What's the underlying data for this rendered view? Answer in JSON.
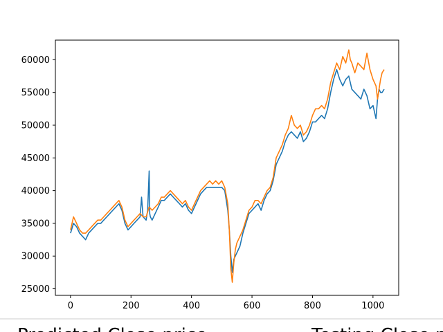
{
  "chart_data": {
    "type": "line",
    "title": "",
    "xlabel": "",
    "ylabel": "",
    "xlim": [
      -50,
      1085
    ],
    "ylim": [
      24000,
      63000
    ],
    "grid": false,
    "legend_position": "bottom",
    "x_ticks": [
      {
        "value": 0,
        "label": "0"
      },
      {
        "value": 200,
        "label": "200"
      },
      {
        "value": 400,
        "label": "400"
      },
      {
        "value": 600,
        "label": "600"
      },
      {
        "value": 800,
        "label": "800"
      },
      {
        "value": 1000,
        "label": "1000"
      }
    ],
    "y_ticks": [
      {
        "value": 25000,
        "label": "25000"
      },
      {
        "value": 30000,
        "label": "30000"
      },
      {
        "value": 35000,
        "label": "35000"
      },
      {
        "value": 40000,
        "label": "40000"
      },
      {
        "value": 45000,
        "label": "45000"
      },
      {
        "value": 50000,
        "label": "50000"
      },
      {
        "value": 55000,
        "label": "55000"
      },
      {
        "value": 60000,
        "label": "60000"
      }
    ],
    "series": [
      {
        "name": "Predicted Close price",
        "color": "#1f77b4",
        "x": [
          0,
          10,
          20,
          30,
          40,
          50,
          60,
          70,
          80,
          90,
          100,
          110,
          120,
          130,
          140,
          150,
          160,
          170,
          180,
          190,
          200,
          210,
          220,
          230,
          235,
          240,
          250,
          255,
          260,
          262,
          264,
          270,
          280,
          290,
          300,
          310,
          320,
          330,
          340,
          350,
          360,
          370,
          380,
          390,
          400,
          410,
          420,
          430,
          440,
          450,
          460,
          470,
          480,
          490,
          500,
          510,
          520,
          525,
          530,
          535,
          540,
          545,
          550,
          560,
          570,
          580,
          590,
          600,
          610,
          620,
          630,
          640,
          650,
          660,
          670,
          680,
          690,
          700,
          710,
          720,
          730,
          740,
          750,
          760,
          770,
          780,
          790,
          800,
          810,
          820,
          830,
          840,
          850,
          860,
          870,
          880,
          890,
          900,
          910,
          920,
          930,
          940,
          950,
          960,
          970,
          980,
          990,
          1000,
          1010,
          1015,
          1020,
          1025,
          1030,
          1037
        ],
        "y": [
          33500,
          35000,
          34500,
          33500,
          33000,
          32500,
          33500,
          34000,
          34500,
          35000,
          35000,
          35500,
          36000,
          36500,
          37000,
          37500,
          38000,
          37000,
          35000,
          34000,
          34500,
          35000,
          35500,
          36000,
          39000,
          36000,
          35500,
          37000,
          43000,
          36500,
          36000,
          35500,
          36500,
          37500,
          38500,
          38500,
          39000,
          39500,
          39000,
          38500,
          38000,
          37500,
          38000,
          37000,
          36500,
          37500,
          38500,
          39500,
          40000,
          40500,
          40500,
          40500,
          40500,
          40500,
          40500,
          40000,
          37000,
          34000,
          30000,
          27500,
          29500,
          30000,
          30500,
          31500,
          33500,
          35000,
          36500,
          37000,
          37500,
          38000,
          37000,
          38500,
          39500,
          40000,
          41500,
          44000,
          45000,
          46000,
          47500,
          48500,
          49000,
          48500,
          48000,
          49000,
          47500,
          48000,
          49000,
          50500,
          50500,
          51000,
          51500,
          51000,
          52500,
          55000,
          57000,
          58500,
          57000,
          56000,
          57000,
          57500,
          55500,
          55000,
          54500,
          54000,
          55500,
          54500,
          52500,
          53000,
          51000,
          54000,
          55500,
          55000,
          55000,
          55500
        ]
      },
      {
        "name": "Testing Close price",
        "color": "#ff7f0e",
        "x": [
          0,
          10,
          20,
          30,
          40,
          50,
          60,
          70,
          80,
          90,
          100,
          110,
          120,
          130,
          140,
          150,
          160,
          170,
          180,
          190,
          200,
          210,
          220,
          230,
          240,
          250,
          260,
          270,
          280,
          290,
          300,
          310,
          320,
          330,
          340,
          350,
          360,
          370,
          380,
          390,
          400,
          410,
          420,
          430,
          440,
          450,
          460,
          470,
          480,
          490,
          500,
          510,
          520,
          525,
          530,
          535,
          540,
          545,
          550,
          560,
          570,
          580,
          590,
          600,
          610,
          620,
          630,
          640,
          650,
          660,
          670,
          680,
          690,
          700,
          710,
          720,
          730,
          740,
          750,
          760,
          770,
          780,
          790,
          800,
          810,
          820,
          830,
          840,
          850,
          860,
          870,
          880,
          890,
          900,
          910,
          920,
          925,
          930,
          940,
          950,
          960,
          970,
          980,
          990,
          1000,
          1010,
          1015,
          1020,
          1025,
          1030,
          1037
        ],
        "y": [
          34000,
          36000,
          35000,
          34000,
          33500,
          33500,
          34000,
          34500,
          35000,
          35500,
          35500,
          36000,
          36500,
          37000,
          37500,
          38000,
          38500,
          37500,
          35500,
          34500,
          35000,
          35500,
          36000,
          36500,
          36000,
          36000,
          37500,
          37000,
          37500,
          38000,
          39000,
          39000,
          39500,
          40000,
          39500,
          39000,
          38500,
          38000,
          38500,
          37500,
          37000,
          38000,
          39000,
          40000,
          40500,
          41000,
          41500,
          41000,
          41500,
          41000,
          41500,
          40500,
          38000,
          34000,
          28000,
          26000,
          29000,
          31000,
          32000,
          33000,
          34000,
          35500,
          37000,
          37500,
          38500,
          38500,
          38000,
          39000,
          40000,
          40500,
          42000,
          45000,
          46000,
          47000,
          48500,
          49500,
          51500,
          50000,
          49500,
          50000,
          48500,
          49000,
          50000,
          51500,
          52500,
          52500,
          53000,
          52500,
          54000,
          56500,
          58000,
          59500,
          58500,
          60500,
          59500,
          61500,
          60000,
          59500,
          58000,
          59500,
          59000,
          58500,
          61000,
          58500,
          57000,
          56000,
          54000,
          55500,
          57000,
          58000,
          58500
        ]
      }
    ]
  }
}
